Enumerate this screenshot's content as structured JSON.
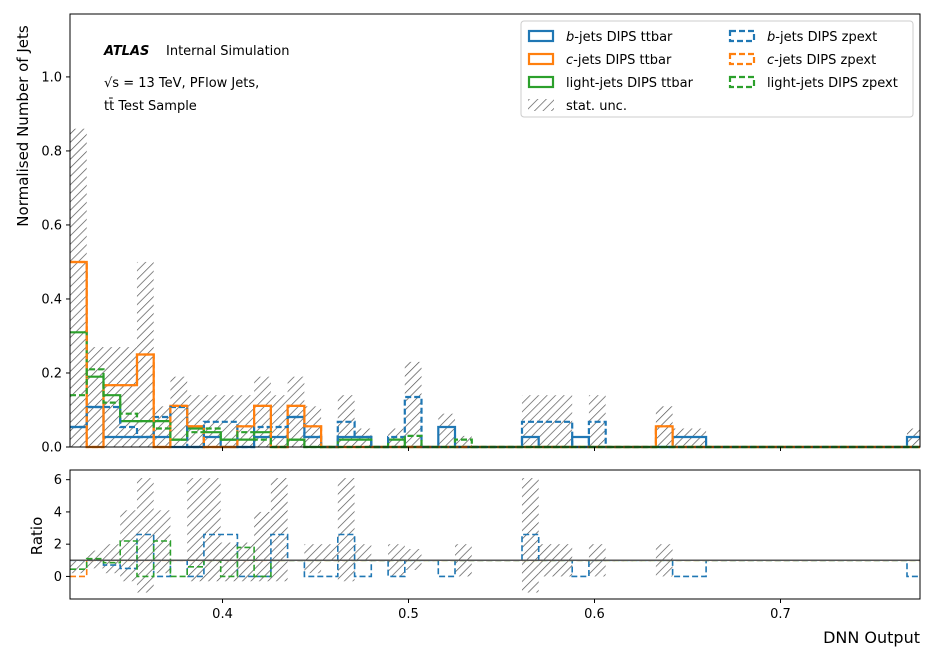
{
  "chart_data": {
    "type": "histogram",
    "xlabel": "DNN Output",
    "ylabel_main": "Normalised Number of Jets",
    "ylabel_ratio": "Ratio",
    "xlim": [
      0.318,
      0.775
    ],
    "ylim_main": [
      0,
      1.17
    ],
    "ylim_ratio": [
      -1.4,
      6.6
    ],
    "x_ticks": [
      0.4,
      0.5,
      0.6,
      0.7
    ],
    "x_tick_labels": [
      "0.4",
      "0.5",
      "0.6",
      "0.7"
    ],
    "y_ticks_main": [
      0,
      0.2,
      0.4,
      0.6,
      0.8,
      1.0
    ],
    "y_tick_labels_main": [
      "0.0",
      "0.2",
      "0.4",
      "0.6",
      "0.8",
      "1.0"
    ],
    "y_ticks_ratio": [
      0,
      2,
      4,
      6
    ],
    "y_tick_labels_ratio": [
      "0",
      "2",
      "4",
      "6"
    ],
    "bin_edges": [
      0.318,
      0.327,
      0.336,
      0.345,
      0.354,
      0.363,
      0.372,
      0.381,
      0.39,
      0.399,
      0.408,
      0.417,
      0.426,
      0.435,
      0.444,
      0.453,
      0.462,
      0.471,
      0.48,
      0.489,
      0.498,
      0.507,
      0.516,
      0.525,
      0.534,
      0.543,
      0.552,
      0.561,
      0.57,
      0.579,
      0.588,
      0.597,
      0.606,
      0.615,
      0.624,
      0.633,
      0.642,
      0.651,
      0.66,
      0.669,
      0.678,
      0.687,
      0.696,
      0.705,
      0.714,
      0.723,
      0.732,
      0.741,
      0.75,
      0.759,
      0.768,
      0.775
    ],
    "series": [
      {
        "name": "b-jets DIPS ttbar",
        "color": "#1f77b4",
        "dash": false,
        "values": [
          0.054,
          0.108,
          0.027,
          0.027,
          0.027,
          0.027,
          0.0,
          0.0,
          0.027,
          0.0,
          0.0,
          0.027,
          0.027,
          0.081,
          0.027,
          0.0,
          0.027,
          0.027,
          0.0,
          0.0,
          0.0,
          0.0,
          0.054,
          0.0,
          0.0,
          0.0,
          0.0,
          0.027,
          0.0,
          0.0,
          0.027,
          0.0,
          0.0,
          0.0,
          0.0,
          0.0,
          0.027,
          0.027,
          0.0,
          0.0,
          0.0,
          0.0,
          0.0,
          0.0,
          0.0,
          0.0,
          0.0,
          0.0,
          0.0,
          0.0,
          0.027
        ]
      },
      {
        "name": "c-jets DIPS ttbar",
        "color": "#ff7f0e",
        "dash": false,
        "values": [
          0.5,
          0.0,
          0.167,
          0.167,
          0.25,
          0.0,
          0.111,
          0.056,
          0.0,
          0.0,
          0.056,
          0.111,
          0.0,
          0.111,
          0.056,
          0.0,
          0.0,
          0.0,
          0.0,
          0.0,
          0.0,
          0.0,
          0.0,
          0.0,
          0.0,
          0.0,
          0.0,
          0.0,
          0.0,
          0.0,
          0.0,
          0.0,
          0.0,
          0.0,
          0.0,
          0.056,
          0.0,
          0.0,
          0.0,
          0.0,
          0.0,
          0.0,
          0.0,
          0.0,
          0.0,
          0.0,
          0.0,
          0.0,
          0.0,
          0.0,
          0.0
        ]
      },
      {
        "name": "light-jets DIPS ttbar",
        "color": "#2ca02c",
        "dash": false,
        "values": [
          0.31,
          0.19,
          0.14,
          0.07,
          0.07,
          0.07,
          0.02,
          0.05,
          0.04,
          0.02,
          0.02,
          0.04,
          0.0,
          0.02,
          0.0,
          0.0,
          0.02,
          0.02,
          0.0,
          0.02,
          0.0,
          0.0,
          0.0,
          0.0,
          0.0,
          0.0,
          0.0,
          0.0,
          0.0,
          0.0,
          0.0,
          0.0,
          0.0,
          0.0,
          0.0,
          0.0,
          0.0,
          0.0,
          0.0,
          0.0,
          0.0,
          0.0,
          0.0,
          0.0,
          0.0,
          0.0,
          0.0,
          0.0,
          0.0,
          0.0,
          0.0
        ]
      },
      {
        "name": "b-jets DIPS zpext",
        "color": "#1f77b4",
        "dash": true,
        "values": [
          0.054,
          0.108,
          0.108,
          0.054,
          0.027,
          0.081,
          0.108,
          0.0,
          0.068,
          0.068,
          0.0,
          0.054,
          0.054,
          0.081,
          0.027,
          0.0,
          0.068,
          0.027,
          0.0,
          0.027,
          0.135,
          0.0,
          0.0,
          0.0,
          0.0,
          0.0,
          0.0,
          0.068,
          0.068,
          0.068,
          0.0,
          0.068,
          0.0,
          0.0,
          0.0,
          0.0,
          0.0,
          0.0,
          0.0,
          0.0,
          0.0,
          0.0,
          0.0,
          0.0,
          0.0,
          0.0,
          0.0,
          0.0,
          0.0,
          0.0,
          0.0
        ]
      },
      {
        "name": "c-jets DIPS zpext",
        "color": "#ff7f0e",
        "dash": true,
        "values": [
          0.5,
          0.0,
          0.167,
          0.167,
          0.25,
          0.0,
          0.111,
          0.056,
          0.0,
          0.0,
          0.056,
          0.111,
          0.0,
          0.111,
          0.056,
          0.0,
          0.0,
          0.0,
          0.0,
          0.0,
          0.0,
          0.0,
          0.0,
          0.0,
          0.0,
          0.0,
          0.0,
          0.0,
          0.0,
          0.0,
          0.0,
          0.0,
          0.0,
          0.0,
          0.0,
          0.056,
          0.0,
          0.0,
          0.0,
          0.0,
          0.0,
          0.0,
          0.0,
          0.0,
          0.0,
          0.0,
          0.0,
          0.0,
          0.0,
          0.0,
          0.0
        ]
      },
      {
        "name": "light-jets DIPS zpext",
        "color": "#2ca02c",
        "dash": true,
        "values": [
          0.14,
          0.21,
          0.12,
          0.09,
          0.07,
          0.05,
          0.02,
          0.04,
          0.05,
          0.02,
          0.04,
          0.02,
          0.0,
          0.02,
          0.0,
          0.0,
          0.0,
          0.0,
          0.0,
          0.0,
          0.03,
          0.0,
          0.0,
          0.02,
          0.0,
          0.0,
          0.0,
          0.0,
          0.0,
          0.0,
          0.0,
          0.0,
          0.0,
          0.0,
          0.0,
          0.0,
          0.0,
          0.0,
          0.0,
          0.0,
          0.0,
          0.0,
          0.0,
          0.0,
          0.0,
          0.0,
          0.0,
          0.0,
          0.0,
          0.0,
          0.0
        ]
      }
    ],
    "stat_unc_band": {
      "name": "stat. unc.",
      "lower": [
        0.0,
        0.0,
        0.0,
        0.0,
        0.0,
        0.0,
        0.0,
        0.0,
        0.0,
        0.0,
        0.0,
        0.0,
        0.0,
        0.0,
        0.0,
        0.0,
        0.0,
        0.0,
        0.0,
        0.0,
        0.0,
        0.0,
        0.0,
        0.0,
        0.0,
        0.0,
        0.0,
        0.0,
        0.0,
        0.0,
        0.0,
        0.0,
        0.0,
        0.0,
        0.0,
        0.0,
        0.0,
        0.0,
        0.0,
        0.0,
        0.0,
        0.0,
        0.0,
        0.0,
        0.0,
        0.0,
        0.0,
        0.0,
        0.0,
        0.0,
        0.0
      ],
      "upper": [
        0.86,
        0.27,
        0.27,
        0.27,
        0.5,
        0.11,
        0.19,
        0.14,
        0.14,
        0.14,
        0.14,
        0.19,
        0.14,
        0.19,
        0.11,
        0.0,
        0.14,
        0.05,
        0.0,
        0.05,
        0.23,
        0.0,
        0.09,
        0.03,
        0.0,
        0.0,
        0.0,
        0.14,
        0.14,
        0.14,
        0.0,
        0.14,
        0.0,
        0.0,
        0.0,
        0.11,
        0.05,
        0.05,
        0.0,
        0.0,
        0.0,
        0.0,
        0.0,
        0.0,
        0.0,
        0.0,
        0.0,
        0.0,
        0.0,
        0.0,
        0.05
      ]
    },
    "ratio_series": [
      {
        "name": "b-jets ratio",
        "color": "#1f77b4",
        "values": [
          1,
          1,
          0.7,
          0.5,
          2.6,
          0.0,
          1.0,
          0.0,
          2.6,
          2.6,
          0.0,
          0.0,
          2.6,
          1.0,
          0.0,
          0.0,
          2.6,
          0.0,
          1.0,
          0.0,
          1.0,
          1.0,
          0.0,
          1.0,
          1.0,
          1.0,
          1.0,
          2.6,
          1.0,
          1.0,
          0.0,
          1.0,
          1.0,
          1.0,
          1.0,
          1.0,
          0.0,
          0.0,
          1.0,
          1.0,
          1.0,
          1.0,
          1.0,
          1.0,
          1.0,
          1.0,
          1.0,
          1.0,
          1.0,
          1.0,
          0.0
        ]
      },
      {
        "name": "c-jets ratio",
        "color": "#ff7f0e",
        "values": [
          0.0,
          1.0,
          1.0,
          1.0,
          1.0,
          1.0,
          1.0,
          1.0,
          1.0,
          1.0,
          1.0,
          1.0,
          1.0,
          1.0,
          1.0,
          1.0,
          1.0,
          1.0,
          1.0,
          1.0,
          1.0,
          1.0,
          1.0,
          1.0,
          1.0,
          1.0,
          1.0,
          1.0,
          1.0,
          1.0,
          1.0,
          1.0,
          1.0,
          1.0,
          1.0,
          1.0,
          1.0,
          1.0,
          1.0,
          1.0,
          1.0,
          1.0,
          1.0,
          1.0,
          1.0,
          1.0,
          1.0,
          1.0,
          1.0,
          1.0,
          1.0
        ]
      },
      {
        "name": "light-jets ratio",
        "color": "#2ca02c",
        "values": [
          0.45,
          1.1,
          0.85,
          2.2,
          0.0,
          2.2,
          0.0,
          0.6,
          1.0,
          0.0,
          1.8,
          0.0,
          1.0,
          1.0,
          1.0,
          1.0,
          1.0,
          1.0,
          1.0,
          1.0,
          1.0,
          1.0,
          1.0,
          1.0,
          1.0,
          1.0,
          1.0,
          1.0,
          1.0,
          1.0,
          1.0,
          1.0,
          1.0,
          1.0,
          1.0,
          1.0,
          1.0,
          1.0,
          1.0,
          1.0,
          1.0,
          1.0,
          1.0,
          1.0,
          1.0,
          1.0,
          1.0,
          1.0,
          1.0,
          1.0,
          1.0
        ]
      }
    ],
    "ratio_unc_band": {
      "lower": [
        0.2,
        0.5,
        0.2,
        -0.3,
        -1.0,
        0.2,
        1.0,
        -0.3,
        -0.3,
        -0.3,
        -0.3,
        -0.3,
        -0.3,
        1.0,
        0.2,
        1.0,
        -0.3,
        1.0,
        1.0,
        0.0,
        0.4,
        1.0,
        1.0,
        0.0,
        1.0,
        1.0,
        1.0,
        -1.0,
        0.0,
        0.0,
        1.0,
        0.0,
        1.0,
        1.0,
        1.0,
        0.0,
        1.0,
        1.0,
        1.0,
        1.0,
        1.0,
        1.0,
        1.0,
        1.0,
        1.0,
        1.0,
        1.0,
        1.0,
        1.0,
        1.0,
        1.0
      ],
      "upper": [
        1.0,
        1.6,
        2.0,
        4.1,
        6.1,
        4.1,
        1.0,
        6.1,
        6.1,
        2.1,
        2.1,
        4.0,
        6.1,
        1.0,
        2.0,
        2.0,
        6.1,
        2.0,
        1.0,
        2.0,
        1.7,
        1.0,
        1.0,
        2.0,
        1.0,
        1.0,
        1.0,
        6.1,
        2.0,
        2.0,
        1.0,
        2.0,
        1.0,
        1.0,
        1.0,
        2.0,
        1.0,
        1.0,
        1.0,
        1.0,
        1.0,
        1.0,
        1.0,
        1.0,
        1.0,
        1.0,
        1.0,
        1.0,
        1.0,
        1.0,
        1.0
      ]
    },
    "annotations": {
      "experiment": "ATLAS",
      "status": "Internal Simulation",
      "energy_line": "√s = 13 TeV, PFlow Jets,",
      "sample_line": "tt̄ Test Sample"
    },
    "legend": {
      "placement": "top-right",
      "columns": 2,
      "entries": [
        {
          "flavour": "b",
          "rest": "-jets DIPS ttbar",
          "color": "#1f77b4",
          "dash": false
        },
        {
          "flavour": "c",
          "rest": "-jets DIPS ttbar",
          "color": "#ff7f0e",
          "dash": false
        },
        {
          "flavour": "",
          "rest": "light-jets DIPS ttbar",
          "color": "#2ca02c",
          "dash": false
        },
        {
          "flavour": "",
          "rest": "stat. unc.",
          "color": "#555555",
          "hatch": true
        },
        {
          "flavour": "b",
          "rest": "-jets DIPS zpext",
          "color": "#1f77b4",
          "dash": true
        },
        {
          "flavour": "c",
          "rest": "-jets DIPS zpext",
          "color": "#ff7f0e",
          "dash": true
        },
        {
          "flavour": "",
          "rest": "light-jets DIPS zpext",
          "color": "#2ca02c",
          "dash": true
        }
      ]
    },
    "reference_line_ratio": 1.0,
    "grid": false
  }
}
